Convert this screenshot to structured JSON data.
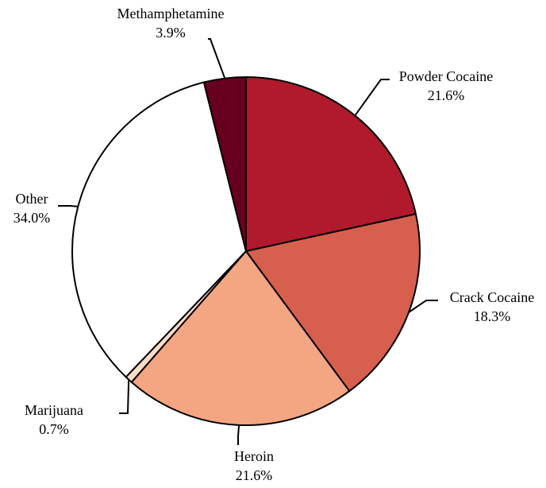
{
  "chart_data": {
    "type": "pie",
    "title": "",
    "start_angle_deg": 0,
    "direction": "clockwise",
    "slices": [
      {
        "label": "Powder Cocaine",
        "value": 21.6,
        "value_label": "21.6%",
        "color": "#b1192d"
      },
      {
        "label": "Crack Cocaine",
        "value": 18.3,
        "value_label": "18.3%",
        "color": "#d6604d"
      },
      {
        "label": "Heroin",
        "value": 21.6,
        "value_label": "21.6%",
        "color": "#f4a582"
      },
      {
        "label": "Marijuana",
        "value": 0.7,
        "value_label": "0.7%",
        "color": "#fddbc7"
      },
      {
        "label": "Other",
        "value": 34.0,
        "value_label": "34.0%",
        "color": "#ffffff"
      },
      {
        "label": "Methamphetamine",
        "value": 3.9,
        "value_label": "3.9%",
        "color": "#67001f"
      }
    ],
    "legend": "none"
  }
}
